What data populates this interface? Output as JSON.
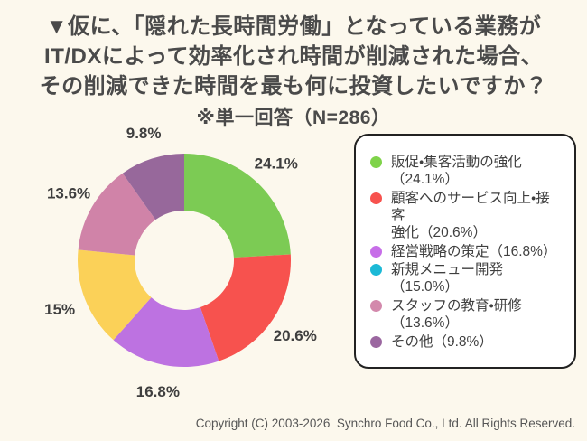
{
  "page": {
    "background_color": "#FCF8ED",
    "title_lines": [
      "▼仮に、「隠れた長時間労働」となっている業務が",
      "IT/DXによって効率化され時間が削減された場合、",
      "その削減できた時間を最も何に投資したいですか？"
    ],
    "subtitle": "※単一回答（N=286）",
    "copyright": "Copyright (C) 2003-2026  Synchro Food Co., Ltd. All Rights Reserved."
  },
  "chart_data": {
    "type": "pie",
    "variant": "donut",
    "title": "▼仮に、「隠れた長時間労働」となっている業務がIT/DXによって効率化され時間が削減された場合、その削減できた時間を最も何に投資したいですか？",
    "subtitle": "※単一回答（N=286）",
    "sample_size": 286,
    "start_angle_deg": 0,
    "direction": "clockwise",
    "inner_radius_ratio": 0.47,
    "legend_position": "right",
    "slices": [
      {
        "label": "販促・集客活動の強化",
        "value": 24.1,
        "slice_label": "24.1%",
        "color": "#7CCB54",
        "legend_color": "#7FD34A",
        "legend_text": "販促・集客活動の強化\n（24.1%）"
      },
      {
        "label": "顧客へのサービス向上・接客強化",
        "value": 20.6,
        "slice_label": "20.6%",
        "color": "#F7524E",
        "legend_color": "#F7524E",
        "legend_text": "顧客へのサービス向上・接客\n強化（20.6%）"
      },
      {
        "label": "経営戦略の策定",
        "value": 16.8,
        "slice_label": "16.8%",
        "color": "#BD72E1",
        "legend_color": "#C76EE8",
        "legend_text": "経営戦略の策定（16.8%）"
      },
      {
        "label": "新規メニュー開発",
        "value": 15.0,
        "slice_label": "15%",
        "color": "#FBD158",
        "legend_color": "#1CB9D6",
        "legend_text": "新規メニュー開発（15.0%）"
      },
      {
        "label": "スタッフの教育・研修",
        "value": 13.6,
        "slice_label": "13.6%",
        "color": "#D083A8",
        "legend_color": "#D389AC",
        "legend_text": "スタッフの教育・研修\n（13.6%）"
      },
      {
        "label": "その他",
        "value": 9.8,
        "slice_label": "9.8%",
        "color": "#97689B",
        "legend_color": "#9B67A0",
        "legend_text": "その他（9.8%）"
      }
    ]
  }
}
